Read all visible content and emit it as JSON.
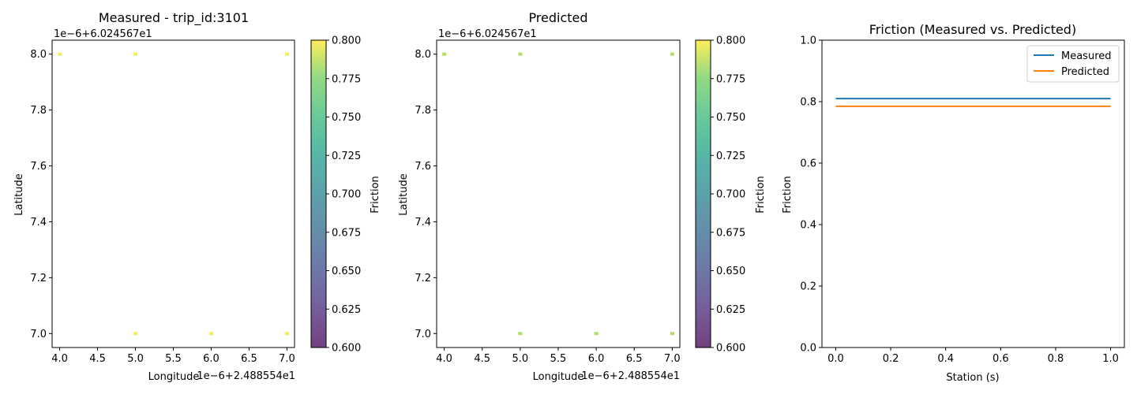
{
  "chart_data": [
    {
      "type": "scatter",
      "title": "Measured - trip_id:3101",
      "xlabel": "Longitude",
      "ylabel": "Latitude",
      "x_offset_label": "1e−6+2.488554e1",
      "y_offset_label": "1e−6+6.024567e1",
      "xlim": [
        3.9,
        7.1
      ],
      "ylim": [
        6.95,
        8.05
      ],
      "xticks": [
        4.0,
        4.5,
        5.0,
        5.5,
        6.0,
        6.5,
        7.0
      ],
      "xtick_labels": [
        "4.0",
        "4.5",
        "5.0",
        "5.5",
        "6.0",
        "6.5",
        "7.0"
      ],
      "yticks": [
        7.0,
        7.2,
        7.4,
        7.6,
        7.8,
        8.0
      ],
      "ytick_labels": [
        "7.0",
        "7.2",
        "7.4",
        "7.6",
        "7.8",
        "8.0"
      ],
      "points": [
        {
          "x": 4.0,
          "y": 8.0,
          "c": 0.81
        },
        {
          "x": 5.0,
          "y": 8.0,
          "c": 0.81
        },
        {
          "x": 7.0,
          "y": 8.0,
          "c": 0.81
        },
        {
          "x": 5.0,
          "y": 7.0,
          "c": 0.81
        },
        {
          "x": 6.0,
          "y": 7.0,
          "c": 0.81
        },
        {
          "x": 7.0,
          "y": 7.0,
          "c": 0.81
        }
      ],
      "colorbar": {
        "label": "Friction",
        "range": [
          0.6,
          0.8
        ],
        "ticks": [
          "0.600",
          "0.625",
          "0.650",
          "0.675",
          "0.700",
          "0.725",
          "0.750",
          "0.775",
          "0.800"
        ]
      }
    },
    {
      "type": "scatter",
      "title": "Predicted",
      "xlabel": "Longitude",
      "ylabel": "Latitude",
      "x_offset_label": "1e−6+2.488554e1",
      "y_offset_label": "1e−6+6.024567e1",
      "xlim": [
        3.9,
        7.1
      ],
      "ylim": [
        6.95,
        8.05
      ],
      "xticks": [
        4.0,
        4.5,
        5.0,
        5.5,
        6.0,
        6.5,
        7.0
      ],
      "xtick_labels": [
        "4.0",
        "4.5",
        "5.0",
        "5.5",
        "6.0",
        "6.5",
        "7.0"
      ],
      "yticks": [
        7.0,
        7.2,
        7.4,
        7.6,
        7.8,
        8.0
      ],
      "ytick_labels": [
        "7.0",
        "7.2",
        "7.4",
        "7.6",
        "7.8",
        "8.0"
      ],
      "points": [
        {
          "x": 4.0,
          "y": 8.0,
          "c": 0.785
        },
        {
          "x": 5.0,
          "y": 8.0,
          "c": 0.785
        },
        {
          "x": 7.0,
          "y": 8.0,
          "c": 0.785
        },
        {
          "x": 5.0,
          "y": 7.0,
          "c": 0.785
        },
        {
          "x": 6.0,
          "y": 7.0,
          "c": 0.785
        },
        {
          "x": 7.0,
          "y": 7.0,
          "c": 0.785
        }
      ],
      "colorbar": {
        "label": "Friction",
        "range": [
          0.6,
          0.8
        ],
        "ticks": [
          "0.600",
          "0.625",
          "0.650",
          "0.675",
          "0.700",
          "0.725",
          "0.750",
          "0.775",
          "0.800"
        ]
      }
    },
    {
      "type": "line",
      "title": "Friction (Measured vs. Predicted)",
      "xlabel": "Station (s)",
      "ylabel": "Friction",
      "xlim": [
        -0.05,
        1.05
      ],
      "ylim": [
        0.0,
        1.0
      ],
      "xticks": [
        0.0,
        0.2,
        0.4,
        0.6,
        0.8,
        1.0
      ],
      "xtick_labels": [
        "0.0",
        "0.2",
        "0.4",
        "0.6",
        "0.8",
        "1.0"
      ],
      "yticks": [
        0.0,
        0.2,
        0.4,
        0.6,
        0.8,
        1.0
      ],
      "ytick_labels": [
        "0.0",
        "0.2",
        "0.4",
        "0.6",
        "0.8",
        "1.0"
      ],
      "legend": "top-right",
      "series": [
        {
          "name": "Measured",
          "color": "#1f77b4",
          "x": [
            0.0,
            1.0
          ],
          "y": [
            0.81,
            0.81
          ]
        },
        {
          "name": "Predicted",
          "color": "#ff7f0e",
          "x": [
            0.0,
            1.0
          ],
          "y": [
            0.785,
            0.785
          ]
        }
      ]
    }
  ]
}
